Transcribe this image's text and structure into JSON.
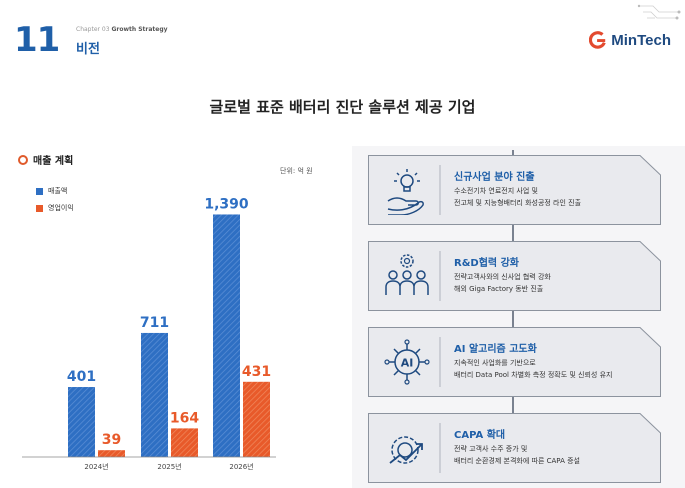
{
  "header": {
    "page_number": "11",
    "chapter": "Chapter 03",
    "chapter_sub": "Growth Strategy",
    "section": "비전",
    "logo_text": "MinTech"
  },
  "headline": "글로벌 표준 배터리 진단 솔루션 제공 기업",
  "chart_title": "매출 계획",
  "unit": "단위: 억 원",
  "colors": {
    "blue": "#2e6fc3",
    "orange": "#e85a2a",
    "accent": "#1f5fa8"
  },
  "chart_data": {
    "type": "bar",
    "title": "매출 계획",
    "categories": [
      "2024년",
      "2025년",
      "2026년"
    ],
    "series": [
      {
        "name": "매출액",
        "values": [
          401,
          711,
          1390
        ]
      },
      {
        "name": "영업이익",
        "values": [
          39,
          164,
          431
        ]
      }
    ],
    "value_labels": {
      "매출액": [
        "401",
        "711",
        "1,390"
      ],
      "영업이익": [
        "39",
        "164",
        "431"
      ]
    },
    "ylim": [
      0,
      1450
    ],
    "legend": "top-left"
  },
  "strategies": [
    {
      "icon": "idea-hand-icon",
      "title": "신규사업 분야 진출",
      "line1": "수소전기차 연료전지 사업 및",
      "line2": "전고체 및 지능형배터리 화성공정 라인 진출"
    },
    {
      "icon": "team-gear-icon",
      "title": "R&D협력 강화",
      "line1": "전략고객사와의 신사업 협력 강화",
      "line2": "해외 Giga Factory 동반 진출"
    },
    {
      "icon": "ai-chip-icon",
      "title": "AI 알고리즘 고도화",
      "line1": "지속적인 사업화를 기반으로",
      "line2": "배터리 Data Pool 차별화 측정 정확도 및 신뢰성 유지"
    },
    {
      "icon": "gear-growth-icon",
      "title": "CAPA 확대",
      "line1": "전략 고객사 수주 증가 및",
      "line2": "배터리 순환경제 본격화에 따른 CAPA 증설"
    }
  ]
}
